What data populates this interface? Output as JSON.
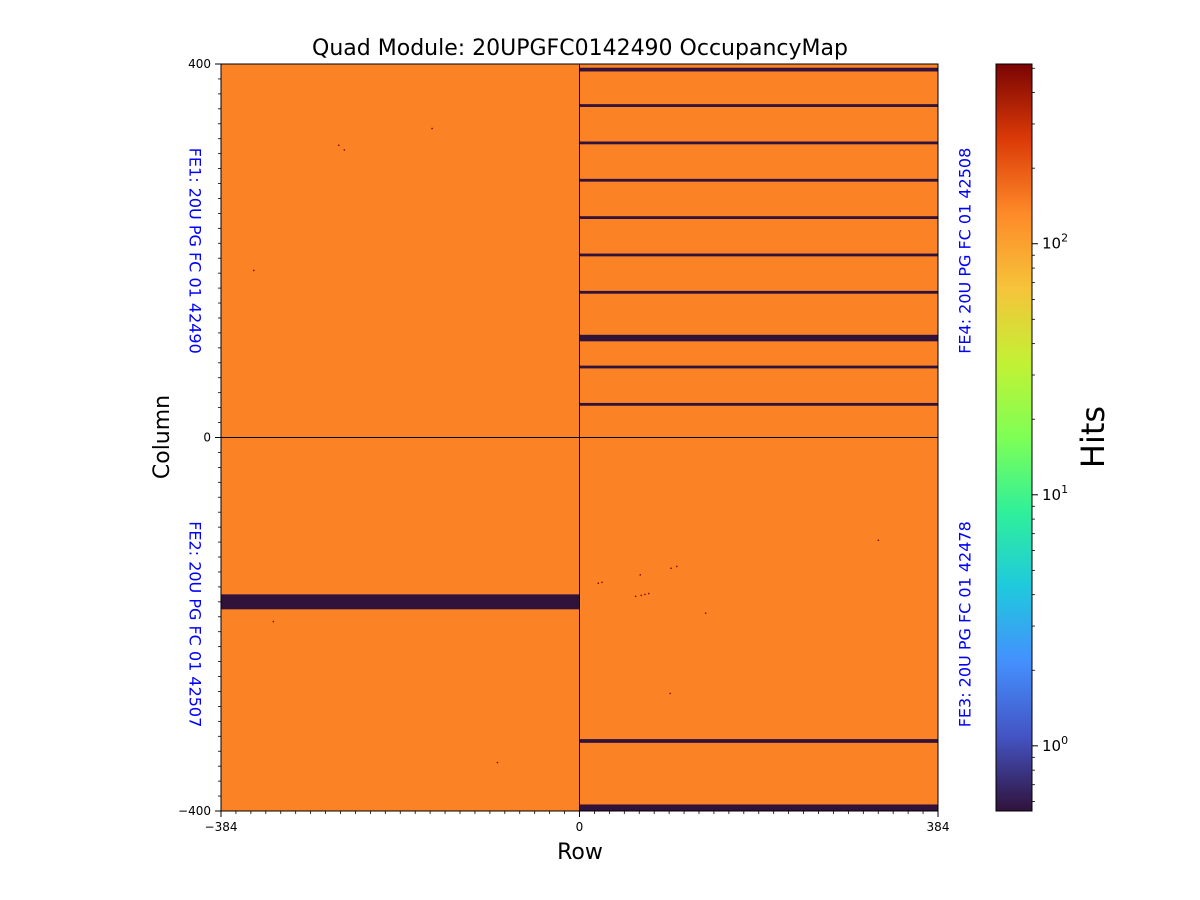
{
  "chart_data": {
    "type": "heatmap",
    "title": "Quad Module: 20UPGFC0142490 OccupancyMap",
    "xlabel": "Row",
    "ylabel": "Column",
    "xlim": [
      -384,
      384
    ],
    "ylim": [
      -400,
      400
    ],
    "x_ticks": [
      {
        "value": -384,
        "label": "−384"
      },
      {
        "value": 0,
        "label": "0"
      },
      {
        "value": 384,
        "label": "384"
      }
    ],
    "y_ticks": [
      {
        "value": 400,
        "label": "400"
      },
      {
        "value": 0,
        "label": "0"
      },
      {
        "value": -400,
        "label": "−400"
      }
    ],
    "colorbar": {
      "label": "Hits",
      "scale": "log",
      "colormap": "turbo",
      "min": 0.55,
      "max": 520,
      "ticks": [
        {
          "value": 1,
          "label": "10",
          "exp": "0"
        },
        {
          "value": 10,
          "label": "10",
          "exp": "1"
        },
        {
          "value": 100,
          "label": "10",
          "exp": "2"
        }
      ]
    },
    "baseline_hits": 140,
    "chips": [
      {
        "name": "FE1",
        "label": "FE1: 20U PG FC 01 42490",
        "x_range": [
          -384,
          0
        ],
        "y_range": [
          0,
          400
        ],
        "label_side": "left",
        "dead_column_bands": [],
        "hot_pixels": [
          [
            -258,
            313
          ],
          [
            -252,
            308
          ],
          [
            -158,
            331
          ],
          [
            -349,
            179
          ]
        ]
      },
      {
        "name": "FE2",
        "label": "FE2: 20U PG FC 01 42507",
        "x_range": [
          -384,
          0
        ],
        "y_range": [
          -400,
          0
        ],
        "label_side": "left",
        "dead_column_bands": [
          [
            -184,
            -168
          ]
        ],
        "hot_pixels": [
          [
            -88,
            -348
          ],
          [
            -328,
            -197
          ]
        ]
      },
      {
        "name": "FE4",
        "label": "FE4: 20U PG FC 01 42508",
        "x_range": [
          0,
          384
        ],
        "y_range": [
          0,
          400
        ],
        "label_side": "right",
        "dead_column_bands": [
          [
            392,
            396
          ],
          [
            354,
            357
          ],
          [
            314,
            317
          ],
          [
            274,
            277
          ],
          [
            234,
            237
          ],
          [
            194,
            197
          ],
          [
            154,
            157
          ],
          [
            103,
            110
          ],
          [
            74,
            77
          ],
          [
            34,
            37
          ]
        ],
        "hot_pixels": []
      },
      {
        "name": "FE3",
        "label": "FE3: 20U PG FC 01 42478",
        "x_range": [
          0,
          384
        ],
        "y_range": [
          -400,
          0
        ],
        "label_side": "right",
        "dead_column_bands": [
          [
            -327,
            -323
          ],
          [
            -400,
            -393
          ]
        ],
        "hot_pixels": [
          [
            20,
            -156
          ],
          [
            24,
            -155
          ],
          [
            65,
            -147
          ],
          [
            104,
            -138
          ],
          [
            60,
            -170
          ],
          [
            66,
            -169
          ],
          [
            70,
            -168
          ],
          [
            74,
            -167
          ],
          [
            98,
            -140
          ],
          [
            135,
            -188
          ],
          [
            97,
            -274
          ],
          [
            320,
            -110
          ]
        ]
      }
    ]
  }
}
